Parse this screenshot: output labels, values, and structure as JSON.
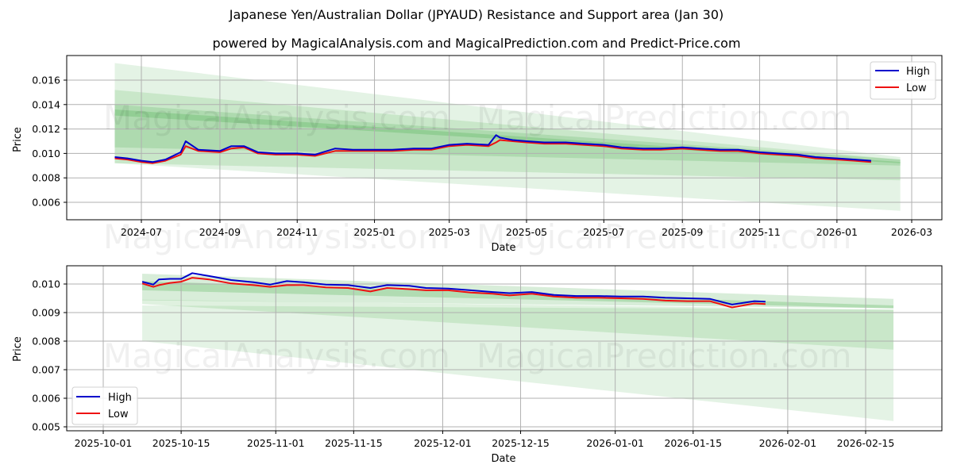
{
  "title": "Japanese Yen/Australian Dollar (JPYAUD) Resistance and Support area (Jan 30)",
  "subtitle": "powered by MagicalAnalysis.com and MagicalPrediction.com and Predict-Price.com",
  "watermarks": [
    "MagicalAnalysis.com",
    "MagicalPrediction.com"
  ],
  "colors": {
    "high": "#0000cc",
    "low": "#ee1111",
    "band": "#4caf50",
    "grid": "#b0b0b0"
  },
  "legend": {
    "high": "High",
    "low": "Low"
  },
  "chart_data": [
    {
      "type": "line",
      "title": "Long-term view",
      "xlabel": "Date",
      "ylabel": "Price",
      "ylim": [
        0.0045,
        0.0178
      ],
      "grid": true,
      "legend_position": "upper right",
      "x_ticks": [
        "2024-07",
        "2024-09",
        "2024-11",
        "2025-01",
        "2025-03",
        "2025-05",
        "2025-07",
        "2025-09",
        "2025-11",
        "2026-01",
        "2026-03"
      ],
      "y_ticks": [
        "0.006",
        "0.008",
        "0.010",
        "0.012",
        "0.014",
        "0.016"
      ],
      "x": [
        "2024-06-10",
        "2024-06-20",
        "2024-07-01",
        "2024-07-10",
        "2024-07-20",
        "2024-08-01",
        "2024-08-05",
        "2024-08-15",
        "2024-09-01",
        "2024-09-10",
        "2024-09-20",
        "2024-10-01",
        "2024-10-15",
        "2024-11-01",
        "2024-11-15",
        "2024-12-01",
        "2024-12-15",
        "2025-01-01",
        "2025-01-15",
        "2025-02-01",
        "2025-02-15",
        "2025-03-01",
        "2025-03-15",
        "2025-04-01",
        "2025-04-07",
        "2025-04-10",
        "2025-04-20",
        "2025-05-01",
        "2025-05-15",
        "2025-06-01",
        "2025-06-15",
        "2025-07-01",
        "2025-07-15",
        "2025-08-01",
        "2025-08-15",
        "2025-09-01",
        "2025-09-15",
        "2025-10-01",
        "2025-10-15",
        "2025-11-01",
        "2025-11-15",
        "2025-12-01",
        "2025-12-15",
        "2026-01-01",
        "2026-01-15",
        "2026-01-28"
      ],
      "series": [
        {
          "name": "High",
          "values": [
            0.0097,
            0.0096,
            0.0094,
            0.0093,
            0.0095,
            0.0101,
            0.011,
            0.0103,
            0.0102,
            0.0106,
            0.0106,
            0.0101,
            0.01,
            0.01,
            0.0099,
            0.0104,
            0.0103,
            0.0103,
            0.0103,
            0.0104,
            0.0104,
            0.0107,
            0.0108,
            0.0107,
            0.0115,
            0.0113,
            0.0111,
            0.011,
            0.0109,
            0.0109,
            0.0108,
            0.0107,
            0.0105,
            0.0104,
            0.0104,
            0.0105,
            0.0104,
            0.0103,
            0.0103,
            0.0101,
            0.01,
            0.0099,
            0.0097,
            0.0096,
            0.0095,
            0.0094
          ]
        },
        {
          "name": "Low",
          "values": [
            0.0096,
            0.0095,
            0.0093,
            0.0092,
            0.0094,
            0.0099,
            0.0106,
            0.0102,
            0.0101,
            0.0104,
            0.0105,
            0.01,
            0.0099,
            0.0099,
            0.0098,
            0.0102,
            0.0102,
            0.0102,
            0.0102,
            0.0103,
            0.0103,
            0.0106,
            0.0107,
            0.0106,
            0.0109,
            0.0111,
            0.011,
            0.0109,
            0.0108,
            0.0108,
            0.0107,
            0.0106,
            0.0104,
            0.0103,
            0.0103,
            0.0104,
            0.0103,
            0.0102,
            0.0102,
            0.01,
            0.0099,
            0.0098,
            0.0096,
            0.0095,
            0.0094,
            0.0093
          ]
        }
      ],
      "bands": [
        {
          "name": "outer-upper",
          "start": [
            0.0174,
            0.0092
          ],
          "end": [
            0.0097,
            0.0053
          ]
        },
        {
          "name": "mid-upper",
          "start": [
            0.0152,
            0.0092
          ],
          "end": [
            0.0095,
            0.0078
          ]
        },
        {
          "name": "inner",
          "start": [
            0.014,
            0.0105
          ],
          "end": [
            0.0095,
            0.009
          ]
        },
        {
          "name": "core",
          "start": [
            0.0136,
            0.0131
          ],
          "end": [
            0.0093,
            0.0092
          ]
        }
      ]
    },
    {
      "type": "line",
      "title": "Short-term view",
      "xlabel": "Date",
      "ylabel": "Price",
      "ylim": [
        0.0049,
        0.01065
      ],
      "grid": true,
      "legend_position": "lower left",
      "x_ticks": [
        "2025-10-01",
        "2025-10-15",
        "2025-11-01",
        "2025-11-15",
        "2025-12-01",
        "2025-12-15",
        "2026-01-01",
        "2026-01-15",
        "2026-02-01",
        "2026-02-15"
      ],
      "y_ticks": [
        "0.005",
        "0.006",
        "0.007",
        "0.008",
        "0.009",
        "0.010"
      ],
      "x": [
        "2025-10-08",
        "2025-10-10",
        "2025-10-11",
        "2025-10-13",
        "2025-10-15",
        "2025-10-17",
        "2025-10-20",
        "2025-10-24",
        "2025-10-28",
        "2025-10-31",
        "2025-11-03",
        "2025-11-06",
        "2025-11-10",
        "2025-11-14",
        "2025-11-18",
        "2025-11-21",
        "2025-11-25",
        "2025-11-28",
        "2025-12-02",
        "2025-12-06",
        "2025-12-10",
        "2025-12-13",
        "2025-12-17",
        "2025-12-21",
        "2025-12-25",
        "2025-12-29",
        "2026-01-02",
        "2026-01-06",
        "2026-01-10",
        "2026-01-14",
        "2026-01-18",
        "2026-01-22",
        "2026-01-26",
        "2026-01-28"
      ],
      "series": [
        {
          "name": "High",
          "values": [
            0.01008,
            0.00998,
            0.01016,
            0.01018,
            0.01018,
            0.01038,
            0.01028,
            0.01014,
            0.01006,
            0.00998,
            0.0101,
            0.01006,
            0.00998,
            0.00996,
            0.00986,
            0.00996,
            0.00994,
            0.00986,
            0.00984,
            0.00978,
            0.00972,
            0.00968,
            0.00972,
            0.00962,
            0.00958,
            0.00958,
            0.00956,
            0.00956,
            0.00952,
            0.0095,
            0.00948,
            0.00928,
            0.0094,
            0.00938
          ]
        },
        {
          "name": "Low",
          "values": [
            0.01002,
            0.0099,
            0.00996,
            0.01004,
            0.01008,
            0.01022,
            0.01016,
            0.01002,
            0.00996,
            0.0099,
            0.00996,
            0.00996,
            0.00988,
            0.00986,
            0.00974,
            0.00986,
            0.00982,
            0.00978,
            0.00978,
            0.0097,
            0.00966,
            0.0096,
            0.00966,
            0.00956,
            0.00952,
            0.00952,
            0.0095,
            0.00948,
            0.00942,
            0.0094,
            0.0094,
            0.00918,
            0.00932,
            0.0093
          ]
        }
      ],
      "bands": [
        {
          "name": "outer-lower",
          "start": [
            0.00925,
            0.008
          ],
          "end": [
            0.0091,
            0.0052
          ]
        },
        {
          "name": "mid-lower",
          "start": [
            0.00945,
            0.0093
          ],
          "end": [
            0.0091,
            0.0077
          ]
        },
        {
          "name": "upper",
          "start": [
            0.01036,
            0.00943
          ],
          "end": [
            0.00948,
            0.00915
          ]
        },
        {
          "name": "core",
          "start": [
            0.0101,
            0.00978
          ],
          "end": [
            0.00925,
            0.00915
          ]
        }
      ]
    }
  ]
}
